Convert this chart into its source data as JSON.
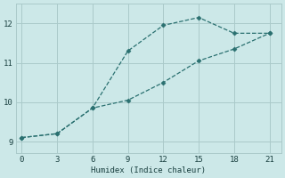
{
  "xlabel": "Humidex (Indice chaleur)",
  "ylabel": "",
  "bg_color": "#cce8e8",
  "grid_color": "#aacaca",
  "line_color": "#2a7070",
  "xlim": [
    -0.5,
    22
  ],
  "ylim": [
    8.7,
    12.5
  ],
  "xticks": [
    0,
    3,
    6,
    9,
    12,
    15,
    18,
    21
  ],
  "yticks": [
    9,
    10,
    11,
    12
  ],
  "line1_x": [
    0,
    3,
    6,
    9,
    12,
    15,
    18,
    21
  ],
  "line1_y": [
    9.1,
    9.2,
    9.85,
    11.3,
    11.95,
    12.15,
    11.75,
    11.75
  ],
  "line2_x": [
    0,
    3,
    6,
    9,
    12,
    15,
    18,
    21
  ],
  "line2_y": [
    9.1,
    9.2,
    9.85,
    10.05,
    10.5,
    11.05,
    11.35,
    11.75
  ],
  "marker": "D",
  "markersize": 2.5,
  "linewidth": 0.9,
  "linestyle": "--"
}
